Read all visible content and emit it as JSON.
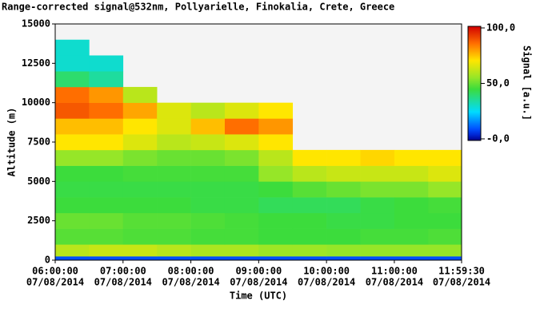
{
  "chart_data": {
    "type": "heatmap",
    "title": "Range-corrected signal@532nm, Pollyarielle, Finokalia, Crete, Greece",
    "x_label": "Time (UTC)",
    "y_label": "Altitude (m)",
    "colorbar_label": "Signal [a.u.]",
    "xlim": [
      6,
      11.991667
    ],
    "xticks": [
      {
        "value": 6,
        "label": "06:00:00"
      },
      {
        "value": 7,
        "label": "07:00:00"
      },
      {
        "value": 8,
        "label": "08:00:00"
      },
      {
        "value": 9,
        "label": "09:00:00"
      },
      {
        "value": 10,
        "label": "10:00:00"
      },
      {
        "value": 11,
        "label": "11:00:00"
      },
      {
        "value": 11.991667,
        "label": "11:59:30"
      }
    ],
    "xtick_dates": [
      "07/08/2014",
      "07/08/2014",
      "07/08/2014",
      "07/08/2014",
      "07/08/2014",
      "07/08/2014",
      "07/08/2014"
    ],
    "ylim": [
      0,
      15000
    ],
    "yticks": [
      0,
      2500,
      5000,
      7500,
      10000,
      12500,
      15000
    ],
    "clim": [
      0,
      100
    ],
    "cticks": [
      {
        "value": 100,
        "label": "100,0"
      },
      {
        "value": 50,
        "label": "50,0"
      },
      {
        "value": 0,
        "label": "-0,0"
      }
    ],
    "x_bins": [
      6,
      6.5,
      7,
      7.5,
      8,
      8.5,
      9,
      9.5,
      10,
      10.5,
      11,
      11.5,
      11.991667
    ],
    "y_bins": [
      0,
      250,
      1000,
      2000,
      3000,
      4000,
      5000,
      6000,
      7000,
      8000,
      9000,
      10000,
      11000,
      12000,
      13000,
      14000,
      15000
    ],
    "z": [
      [
        10,
        10,
        10,
        10,
        10,
        10,
        10,
        10,
        10,
        10,
        10,
        10
      ],
      [
        60,
        62,
        62,
        60,
        58,
        58,
        56,
        56,
        55,
        55,
        55,
        55
      ],
      [
        48,
        48,
        47,
        47,
        46,
        46,
        45,
        45,
        45,
        46,
        46,
        47
      ],
      [
        50,
        50,
        48,
        48,
        47,
        46,
        45,
        45,
        44,
        44,
        45,
        45
      ],
      [
        45,
        45,
        45,
        45,
        44,
        44,
        42,
        42,
        42,
        44,
        45,
        46
      ],
      [
        44,
        44,
        44,
        44,
        44,
        44,
        45,
        48,
        50,
        52,
        52,
        55
      ],
      [
        45,
        45,
        46,
        46,
        46,
        46,
        55,
        60,
        62,
        62,
        62,
        65
      ],
      [
        55,
        55,
        52,
        50,
        50,
        52,
        60,
        70,
        70,
        72,
        70,
        70
      ],
      [
        70,
        70,
        65,
        60,
        62,
        65,
        70,
        null,
        null,
        null,
        null,
        null
      ],
      [
        75,
        75,
        70,
        65,
        75,
        85,
        80,
        null,
        null,
        null,
        null,
        null
      ],
      [
        88,
        85,
        78,
        65,
        60,
        65,
        70,
        null,
        null,
        null,
        null,
        null
      ],
      [
        85,
        80,
        60,
        null,
        null,
        null,
        null,
        null,
        null,
        null,
        null,
        null
      ],
      [
        40,
        35,
        null,
        null,
        null,
        null,
        null,
        null,
        null,
        null,
        null,
        null
      ],
      [
        30,
        30,
        null,
        null,
        null,
        null,
        null,
        null,
        null,
        null,
        null,
        null
      ],
      [
        30,
        null,
        null,
        null,
        null,
        null,
        null,
        null,
        null,
        null,
        null,
        null
      ],
      [
        null,
        null,
        null,
        null,
        null,
        null,
        null,
        null,
        null,
        null,
        null,
        null
      ]
    ]
  }
}
